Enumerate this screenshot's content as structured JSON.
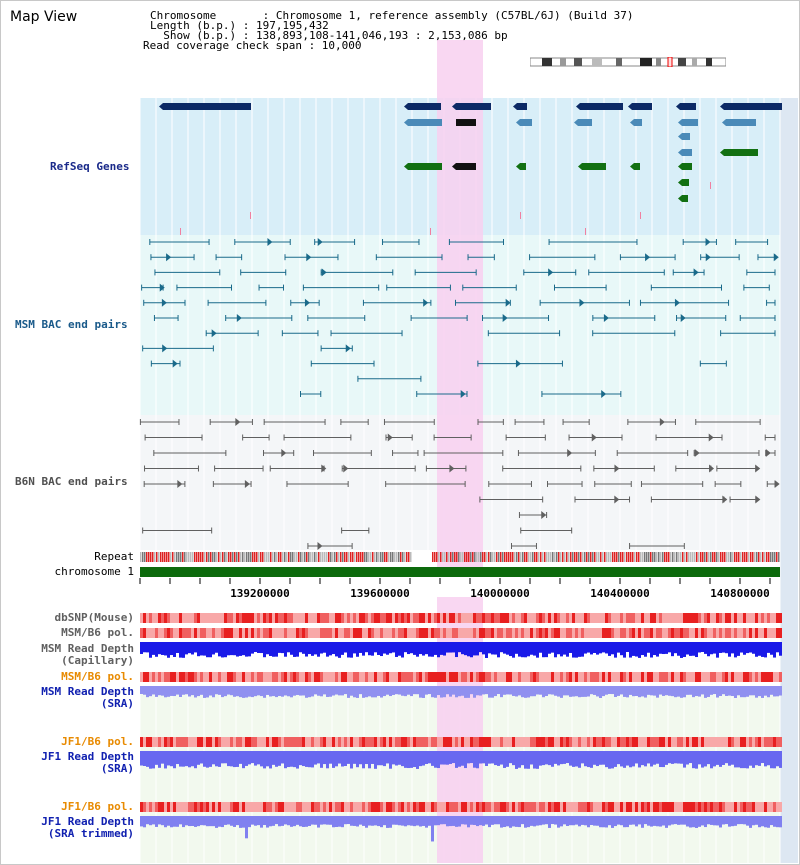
{
  "title": "Map View",
  "info": {
    "chromosome": "Chromosome       : Chromosome 1, reference assembly (C57BL/6J) (Build 37)",
    "length": "Length (b.p.) : 197,195,432",
    "show": "  Show (b.p.) : 138,893,108-141,046,193 : 2,153,086 bp",
    "span": "Read coverage check span : 10,000"
  },
  "tracks": {
    "refseq": "RefSeq Genes",
    "msm_bac": "MSM BAC end pairs",
    "b6n_bac": "B6N BAC end pairs",
    "repeat": "Repeat",
    "chromosome": "chromosome 1",
    "dbsnp": "dbSNP(Mouse)",
    "msm_pol1": "MSM/B6 pol.",
    "msm_depth_cap_1": "MSM Read Depth",
    "msm_depth_cap_2": "(Capillary)",
    "msm_pol2": "MSM/B6 pol.",
    "msm_depth_sra_1": "MSM Read Depth",
    "msm_depth_sra_2": "(SRA)",
    "jf1_pol1": "JF1/B6 pol.",
    "jf1_depth_sra_1": "JF1 Read Depth",
    "jf1_depth_sra_2": "(SRA)",
    "jf1_pol2": "JF1/B6 pol.",
    "jf1_depth_trim_1": "JF1 Read Depth",
    "jf1_depth_trim_2": "(SRA trimmed)"
  },
  "axis": {
    "ticks": [
      "139200000",
      "139600000",
      "140000000",
      "140400000",
      "140800000"
    ]
  },
  "colors": {
    "refseq_bg": "#d8eef8",
    "bac_bg": "#e8f8f8",
    "b6n_bg": "#f4f6f8",
    "highlight": "#f8d0f0",
    "gene_dark": "#0c2a66",
    "gene_mid": "#4a8ab8",
    "gene_green": "#127012",
    "msm_color": "#1a6a8a",
    "b6n_color": "#606060",
    "orange_label": "#e88a00",
    "blue_label": "#1020b0"
  }
}
